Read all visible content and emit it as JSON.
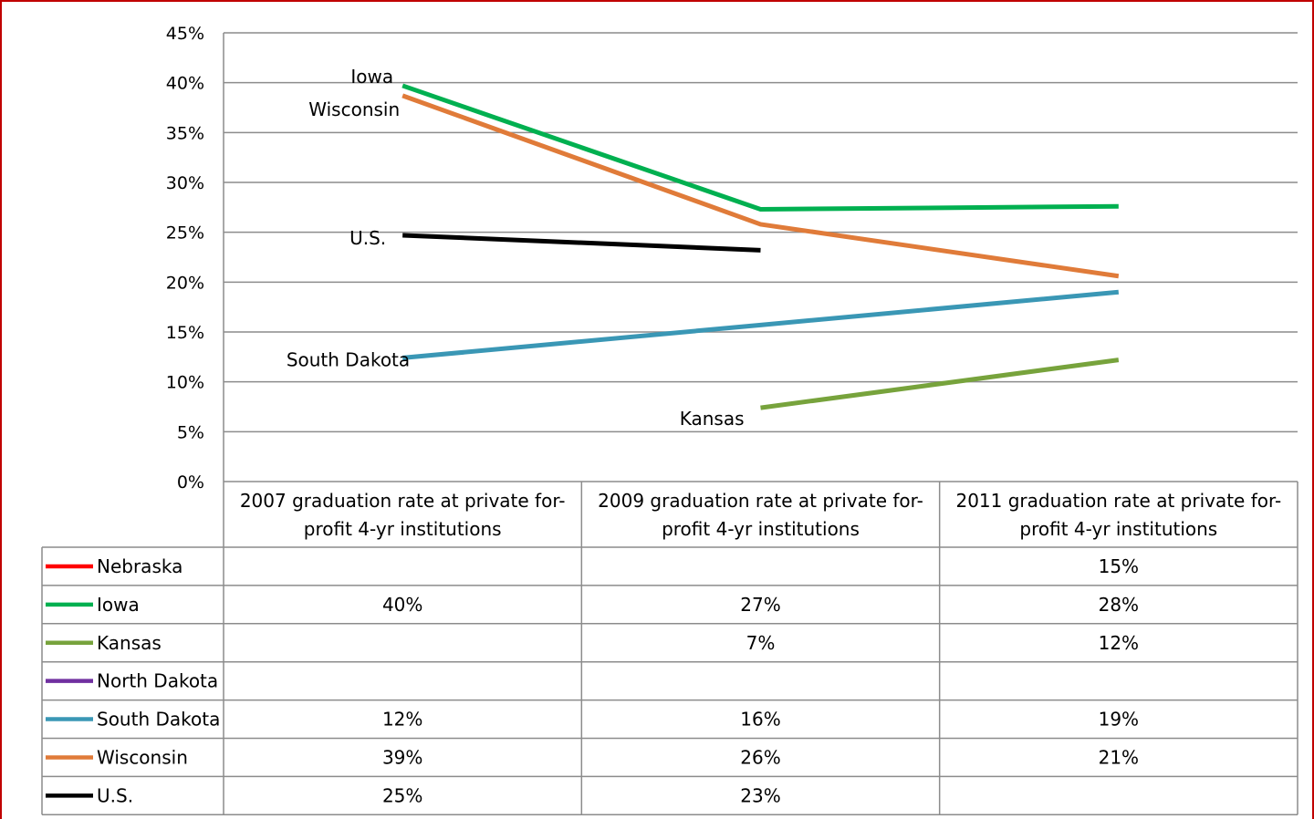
{
  "chart_data": {
    "type": "line",
    "categories": [
      "2007 graduation rate at private for-profit 4-yr institutions",
      "2009 graduation rate at private for-profit 4-yr institutions",
      "2011 graduation rate at private for-profit 4-yr institutions"
    ],
    "category_lines": [
      [
        "2007 graduation rate at private for-",
        "profit 4-yr institutions"
      ],
      [
        "2009 graduation rate at private for-",
        "profit 4-yr institutions"
      ],
      [
        "2011 graduation rate at private for-",
        "profit 4-yr institutions"
      ]
    ],
    "y_ticks": [
      "0%",
      "5%",
      "10%",
      "15%",
      "20%",
      "25%",
      "30%",
      "35%",
      "40%",
      "45%"
    ],
    "ylim": [
      0,
      45
    ],
    "grid": true,
    "legend": "data-table",
    "series": [
      {
        "name": "Nebraska",
        "color": "#ff0000",
        "values": [
          null,
          null,
          15
        ],
        "table": [
          "",
          "",
          "15%"
        ]
      },
      {
        "name": "Iowa",
        "color": "#00b050",
        "values": [
          39.7,
          27.3,
          27.6
        ],
        "table": [
          "40%",
          "27%",
          "28%"
        ],
        "label": "Iowa"
      },
      {
        "name": "Kansas",
        "color": "#77a33c",
        "values": [
          null,
          7.4,
          12.2
        ],
        "table": [
          "",
          "7%",
          "12%"
        ],
        "label": "Kansas"
      },
      {
        "name": "North Dakota",
        "color": "#7030a0",
        "values": [
          null,
          null,
          null
        ],
        "table": [
          "",
          "",
          ""
        ]
      },
      {
        "name": "South Dakota",
        "color": "#3a97b5",
        "values": [
          12.4,
          15.7,
          19.0
        ],
        "table": [
          "12%",
          "16%",
          "19%"
        ],
        "label": "South Dakota"
      },
      {
        "name": "Wisconsin",
        "color": "#e07b39",
        "values": [
          38.7,
          25.8,
          20.6
        ],
        "table": [
          "39%",
          "26%",
          "21%"
        ],
        "label": "Wisconsin"
      },
      {
        "name": "U.S.",
        "color": "#000000",
        "values": [
          24.7,
          23.2,
          null
        ],
        "table": [
          "25%",
          "23%",
          ""
        ],
        "label": "U.S."
      }
    ]
  }
}
